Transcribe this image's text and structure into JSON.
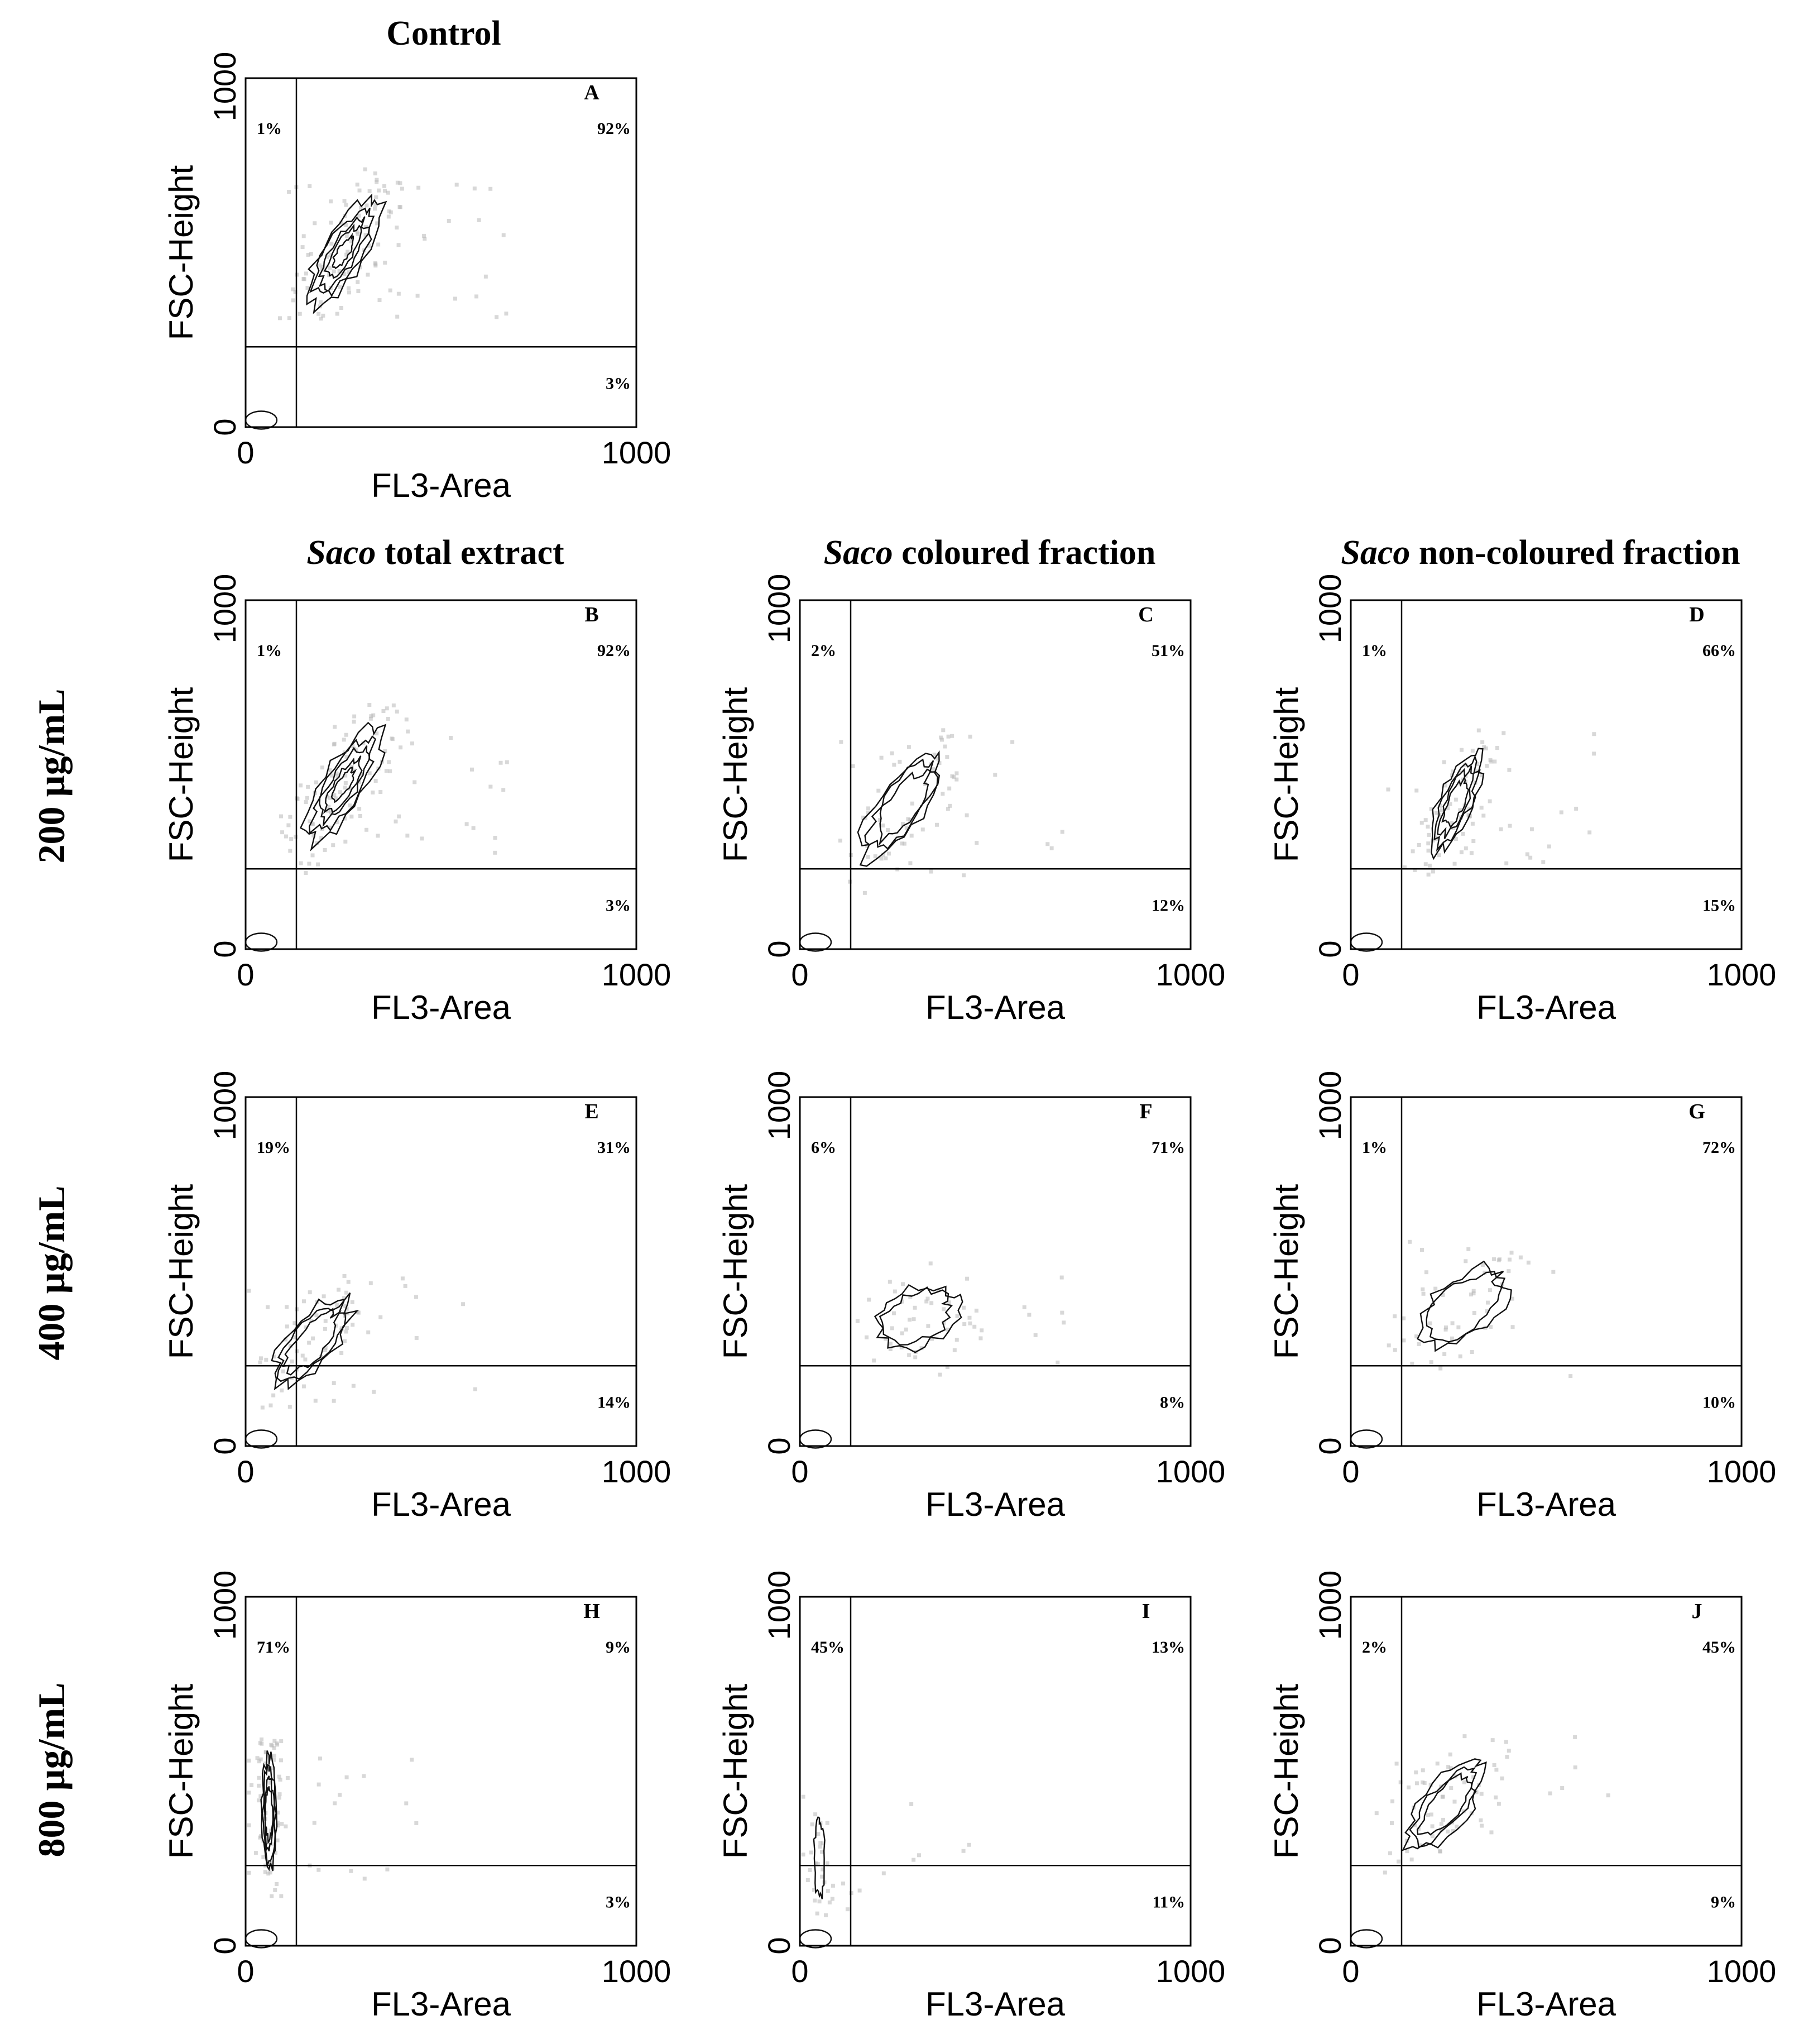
{
  "column_titles": [
    {
      "italic": "",
      "rest": "Control"
    },
    {
      "italic": "Saco",
      "rest": " total extract"
    },
    {
      "italic": "Saco",
      "rest": " coloured fraction"
    },
    {
      "italic": "Saco",
      "rest": " non-coloured fraction"
    }
  ],
  "row_titles": [
    "200  µg/mL",
    "400  µg/mL",
    "800  µg/mL"
  ],
  "chart_data": [
    {
      "type": "scatter",
      "panel": "A",
      "xlabel": "FL3-Area",
      "ylabel": "FSC-Height",
      "xlim": [
        0,
        1000
      ],
      "ylim": [
        0,
        1000
      ],
      "xticks": [
        "0",
        "1000"
      ],
      "yticks": [
        "0",
        "1000"
      ],
      "gate": {
        "x": 130,
        "y": 230
      },
      "quadrants": {
        "upper_left": "1%",
        "upper_right": "92%",
        "lower_right": "3%"
      },
      "cluster": {
        "cx": 250,
        "cy": 500,
        "sx": 100,
        "sy": 170,
        "tilt": 62,
        "levels": 5,
        "density": 1.0
      }
    },
    {
      "type": "scatter",
      "panel": "B",
      "xlabel": "FL3-Area",
      "ylabel": "FSC-Height",
      "xlim": [
        0,
        1000
      ],
      "ylim": [
        0,
        1000
      ],
      "xticks": [
        "0",
        "1000"
      ],
      "yticks": [
        "0",
        "1000"
      ],
      "gate": {
        "x": 130,
        "y": 230
      },
      "quadrants": {
        "upper_left": "1%",
        "upper_right": "92%",
        "lower_right": "3%"
      },
      "cluster": {
        "cx": 250,
        "cy": 470,
        "sx": 100,
        "sy": 180,
        "tilt": 62,
        "levels": 5,
        "density": 1.0
      }
    },
    {
      "type": "scatter",
      "panel": "C",
      "xlabel": "FL3-Area",
      "ylabel": "FSC-Height",
      "xlim": [
        0,
        1000
      ],
      "ylim": [
        0,
        1000
      ],
      "xticks": [
        "0",
        "1000"
      ],
      "yticks": [
        "0",
        "1000"
      ],
      "gate": {
        "x": 130,
        "y": 230
      },
      "quadrants": {
        "upper_left": "2%",
        "upper_right": "51%",
        "lower_right": "12%"
      },
      "cluster": {
        "cx": 260,
        "cy": 410,
        "sx": 110,
        "sy": 170,
        "tilt": 58,
        "levels": 3,
        "density": 0.5
      }
    },
    {
      "type": "scatter",
      "panel": "D",
      "xlabel": "FL3-Area",
      "ylabel": "FSC-Height",
      "xlim": [
        0,
        1000
      ],
      "ylim": [
        0,
        1000
      ],
      "xticks": [
        "0",
        "1000"
      ],
      "yticks": [
        "0",
        "1000"
      ],
      "gate": {
        "x": 130,
        "y": 230
      },
      "quadrants": {
        "upper_left": "1%",
        "upper_right": "66%",
        "lower_right": "15%"
      },
      "cluster": {
        "cx": 270,
        "cy": 420,
        "sx": 80,
        "sy": 150,
        "tilt": 70,
        "levels": 4,
        "density": 0.7
      }
    },
    {
      "type": "scatter",
      "panel": "E",
      "xlabel": "FL3-Area",
      "ylabel": "FSC-Height",
      "xlim": [
        0,
        1000
      ],
      "ylim": [
        0,
        1000
      ],
      "xticks": [
        "0",
        "1000"
      ],
      "yticks": [
        "0",
        "1000"
      ],
      "gate": {
        "x": 130,
        "y": 230
      },
      "quadrants": {
        "upper_left": "19%",
        "upper_right": "31%",
        "lower_right": "14%"
      },
      "cluster": {
        "cx": 170,
        "cy": 300,
        "sx": 110,
        "sy": 150,
        "tilt": 55,
        "levels": 3,
        "density": 0.55
      }
    },
    {
      "type": "scatter",
      "panel": "F",
      "xlabel": "FL3-Area",
      "ylabel": "FSC-Height",
      "xlim": [
        0,
        1000
      ],
      "ylim": [
        0,
        1000
      ],
      "xticks": [
        "0",
        "1000"
      ],
      "yticks": [
        "0",
        "1000"
      ],
      "gate": {
        "x": 130,
        "y": 230
      },
      "quadrants": {
        "upper_left": "6%",
        "upper_right": "71%",
        "lower_right": "8%"
      },
      "cluster": {
        "cx": 300,
        "cy": 370,
        "sx": 150,
        "sy": 110,
        "tilt": 30,
        "levels": 2,
        "density": 0.35
      }
    },
    {
      "type": "scatter",
      "panel": "G",
      "xlabel": "FL3-Area",
      "ylabel": "FSC-Height",
      "xlim": [
        0,
        1000
      ],
      "ylim": [
        0,
        1000
      ],
      "xticks": [
        "0",
        "1000"
      ],
      "yticks": [
        "0",
        "1000"
      ],
      "gate": {
        "x": 130,
        "y": 230
      },
      "quadrants": {
        "upper_left": "1%",
        "upper_right": "72%",
        "lower_right": "10%"
      },
      "cluster": {
        "cx": 290,
        "cy": 400,
        "sx": 140,
        "sy": 140,
        "tilt": 45,
        "levels": 2,
        "density": 0.3
      }
    },
    {
      "type": "scatter",
      "panel": "H",
      "xlabel": "FL3-Area",
      "ylabel": "FSC-Height",
      "xlim": [
        0,
        1000
      ],
      "ylim": [
        0,
        1000
      ],
      "xticks": [
        "0",
        "1000"
      ],
      "yticks": [
        "0",
        "1000"
      ],
      "gate": {
        "x": 130,
        "y": 230
      },
      "quadrants": {
        "upper_left": "71%",
        "upper_right": "9%",
        "lower_right": "3%"
      },
      "cluster": {
        "cx": 60,
        "cy": 380,
        "sx": 35,
        "sy": 160,
        "tilt": 90,
        "levels": 4,
        "density": 0.6
      }
    },
    {
      "type": "scatter",
      "panel": "I",
      "xlabel": "FL3-Area",
      "ylabel": "FSC-Height",
      "xlim": [
        0,
        1000
      ],
      "ylim": [
        0,
        1000
      ],
      "xticks": [
        "0",
        "1000"
      ],
      "yticks": [
        "0",
        "1000"
      ],
      "gate": {
        "x": 130,
        "y": 230
      },
      "quadrants": {
        "upper_left": "45%",
        "upper_right": "13%",
        "lower_right": "11%"
      },
      "cluster": {
        "cx": 50,
        "cy": 250,
        "sx": 25,
        "sy": 110,
        "tilt": 90,
        "levels": 1,
        "density": 0.15
      }
    },
    {
      "type": "scatter",
      "panel": "J",
      "xlabel": "FL3-Area",
      "ylabel": "FSC-Height",
      "xlim": [
        0,
        1000
      ],
      "ylim": [
        0,
        1000
      ],
      "xticks": [
        "0",
        "1000"
      ],
      "yticks": [
        "0",
        "1000"
      ],
      "gate": {
        "x": 130,
        "y": 230
      },
      "quadrants": {
        "upper_left": "2%",
        "upper_right": "45%",
        "lower_right": "9%"
      },
      "cluster": {
        "cx": 240,
        "cy": 400,
        "sx": 110,
        "sy": 150,
        "tilt": 55,
        "levels": 3,
        "density": 0.5
      }
    }
  ]
}
